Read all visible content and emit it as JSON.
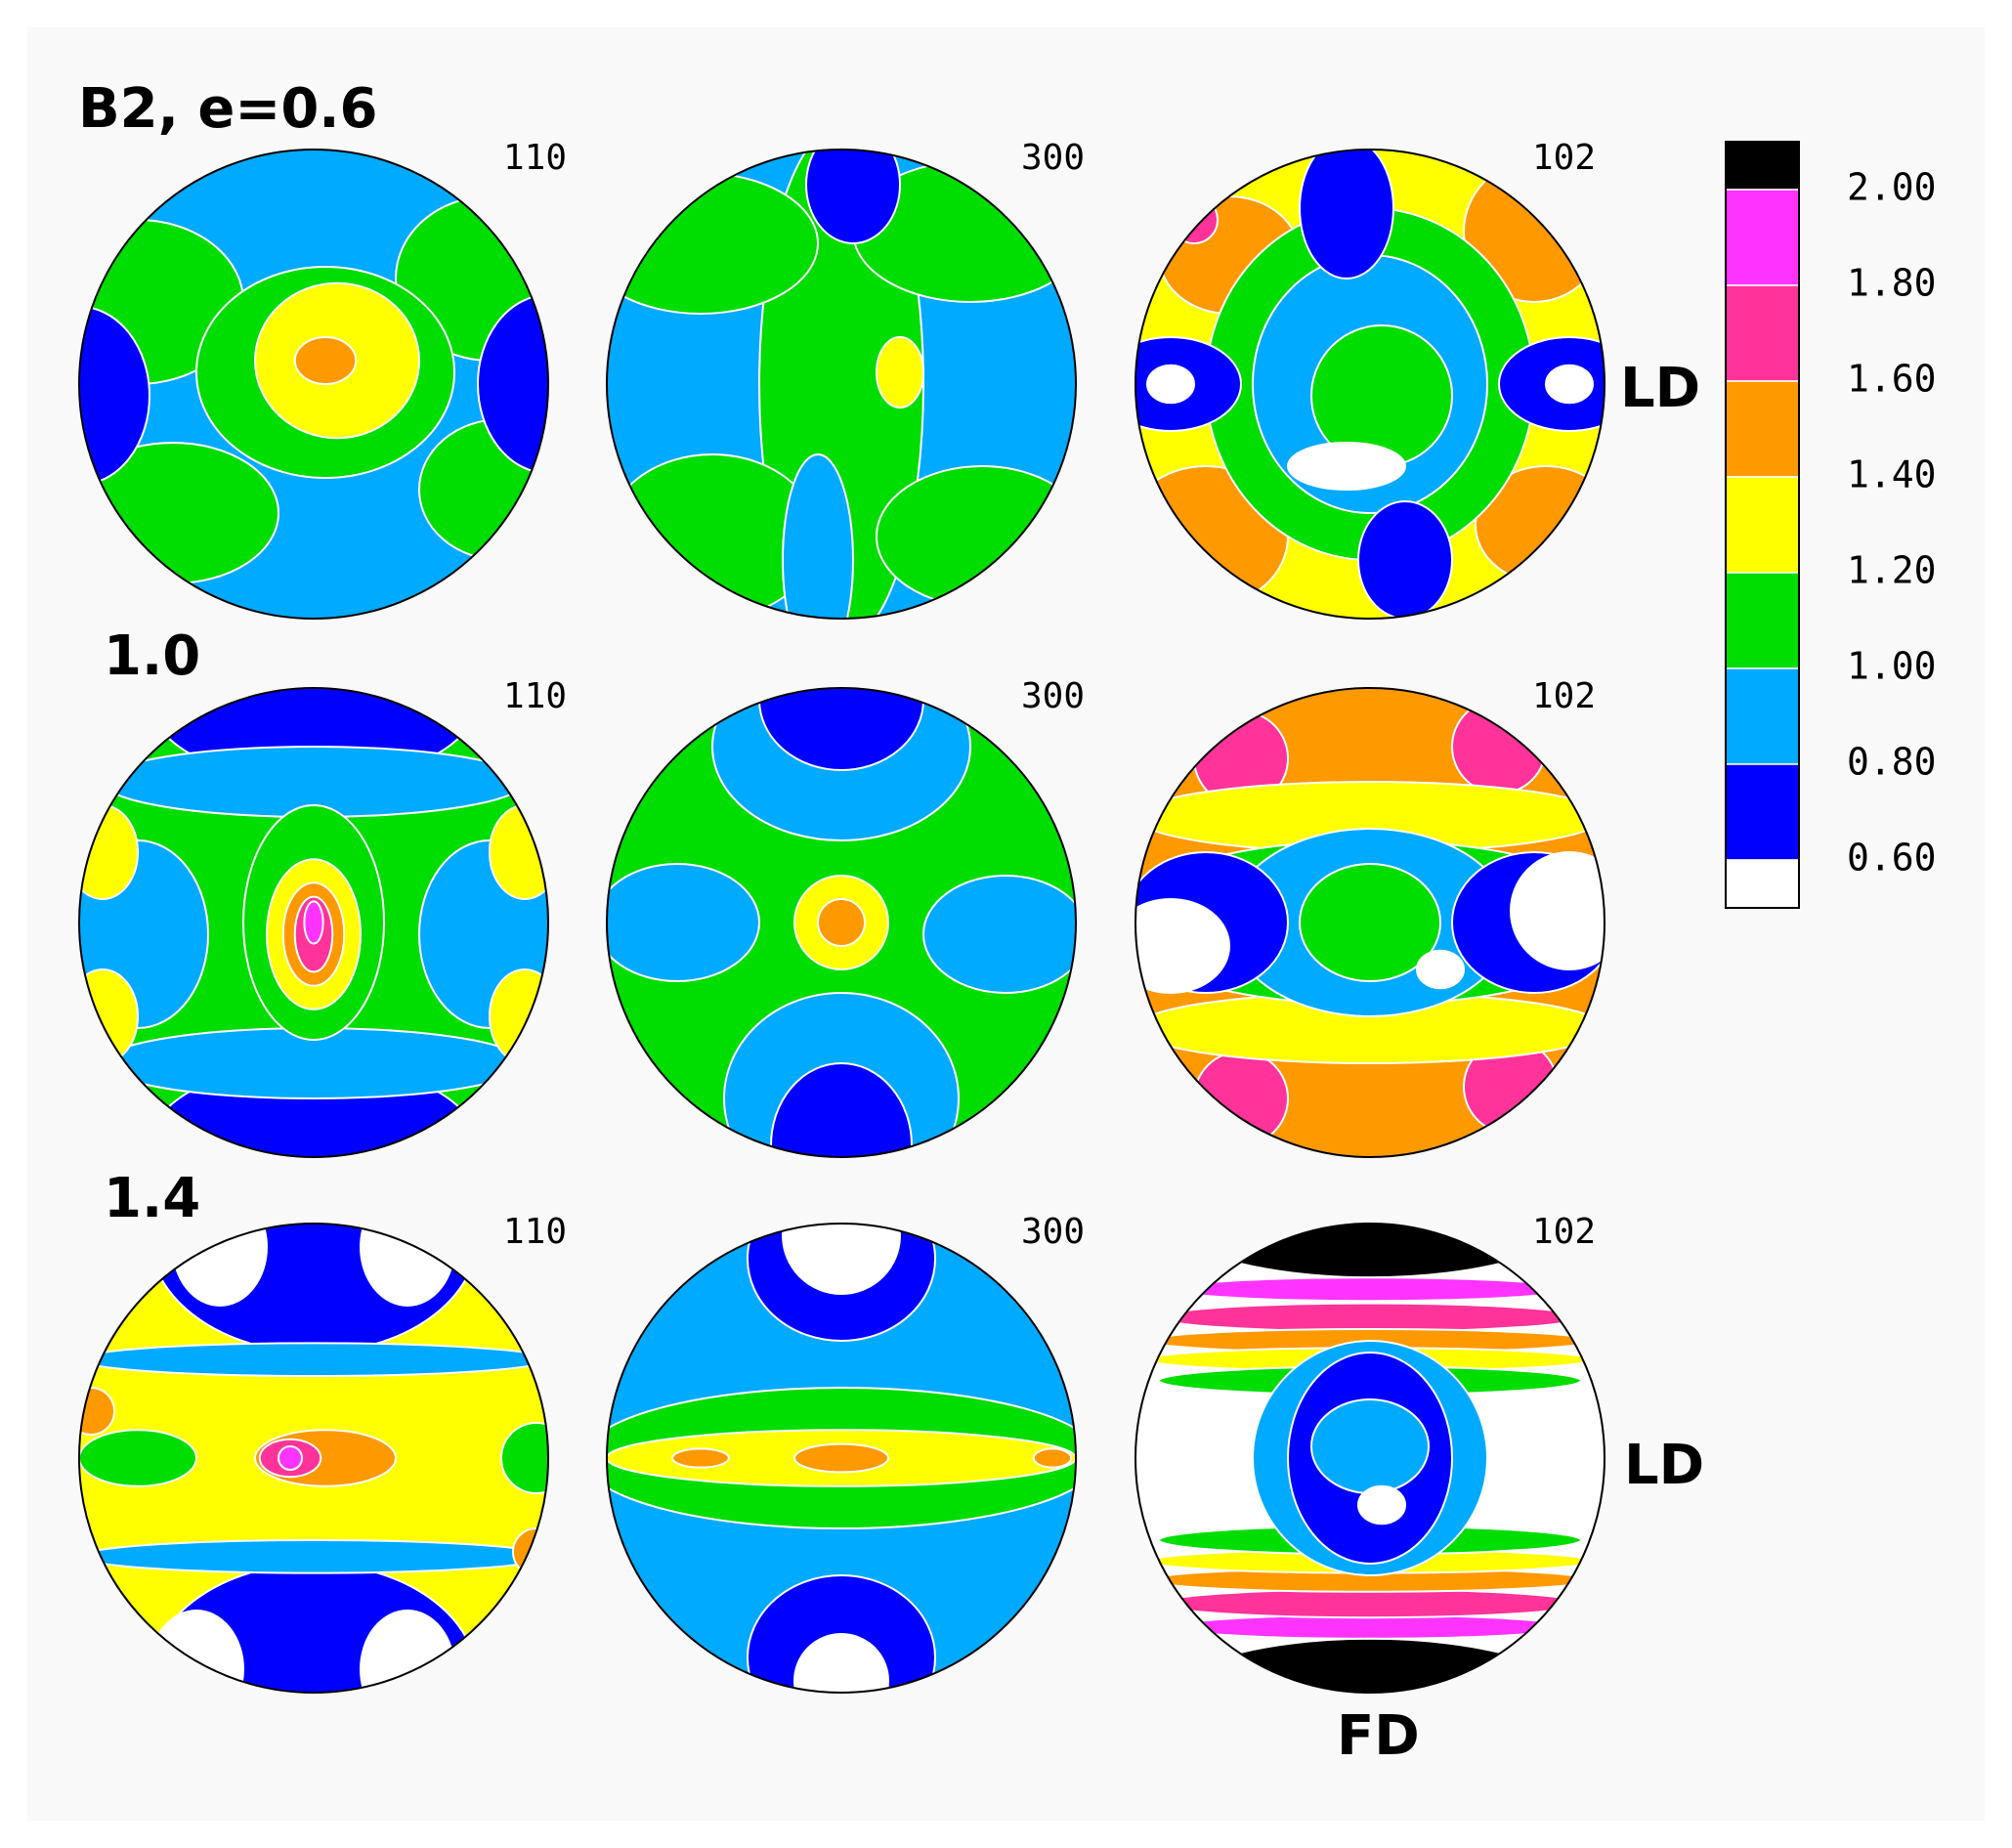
{
  "title": "B2, e=0.6",
  "rows": [
    {
      "panels": [
        "110",
        "300",
        "102"
      ]
    },
    {
      "label": "1.0",
      "panels": [
        "110",
        "300",
        "102"
      ]
    },
    {
      "label": "1.4",
      "panels": [
        "110",
        "300",
        "102"
      ]
    }
  ],
  "directions": {
    "ld": [
      "LD",
      "LD"
    ],
    "fd": "FD"
  },
  "legend": {
    "colors": [
      "#000000",
      "#ff33ff",
      "#ff3399",
      "#ff9900",
      "#ffff00",
      "#00dd00",
      "#00aaff",
      "#0000ff",
      "#ffffff"
    ],
    "labels": [
      "2.00",
      "1.80",
      "1.60",
      "1.40",
      "1.20",
      "1.00",
      "0.80",
      "0.60"
    ]
  }
}
